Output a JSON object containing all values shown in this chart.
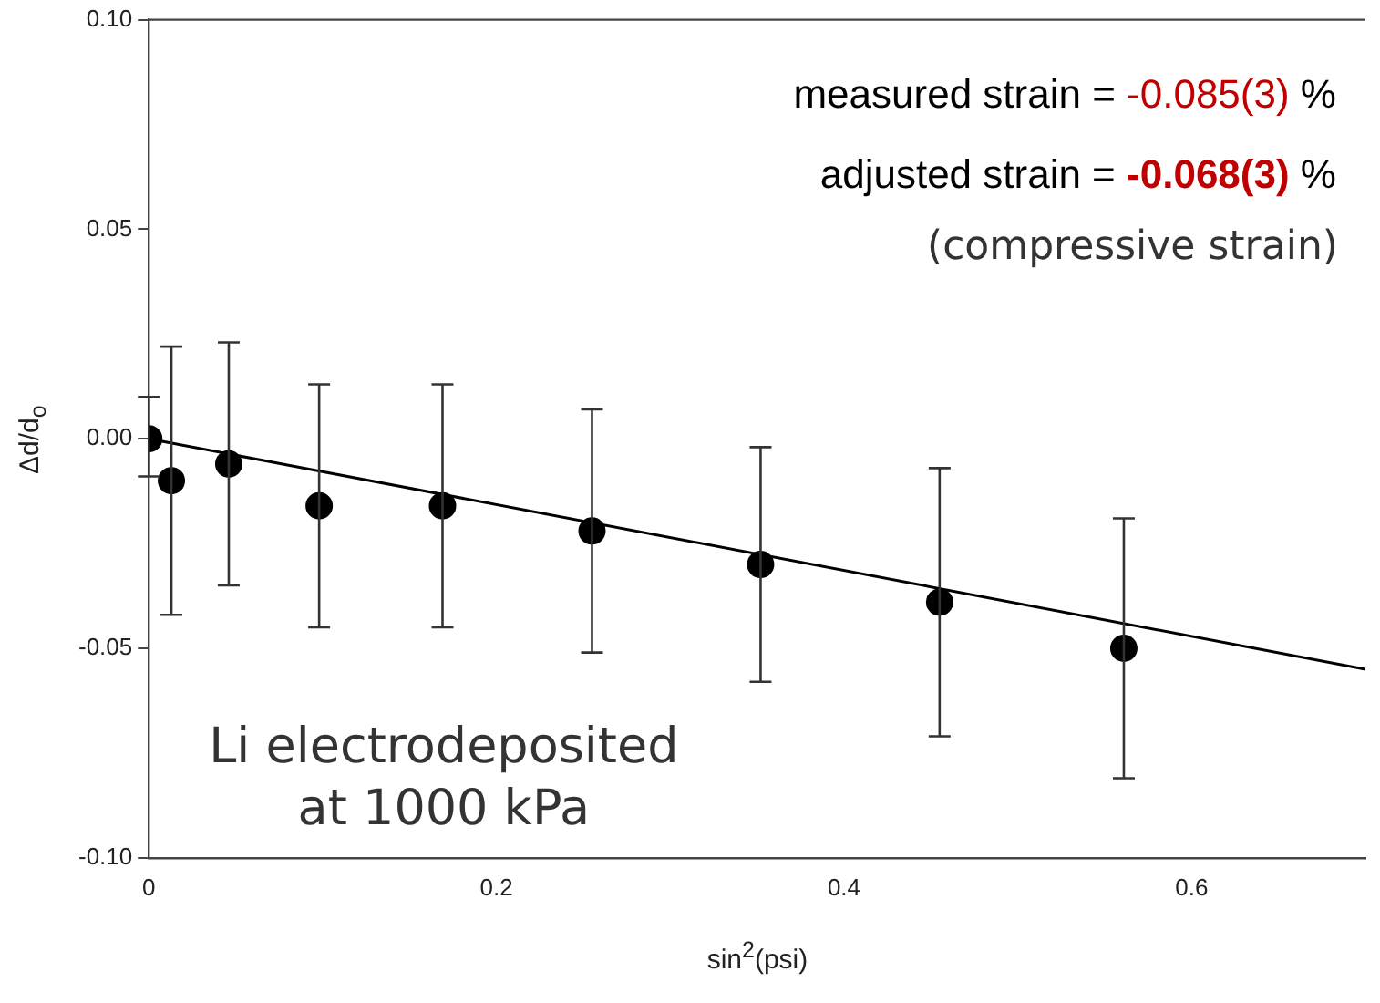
{
  "chart_data": {
    "type": "scatter",
    "xlabel": "sin$^{2}$(psi)",
    "ylabel": "Δd/d$_{o}$",
    "x": [
      0.0,
      0.013,
      0.046,
      0.098,
      0.169,
      0.255,
      0.352,
      0.455,
      0.561
    ],
    "series": [
      {
        "color": "#000000",
        "marker": "circle",
        "values": [
          0.0,
          -0.01,
          -0.006,
          -0.016,
          -0.016,
          -0.022,
          -0.03,
          -0.039,
          -0.05
        ],
        "errors": [
          [
            -0.009,
            0.01
          ],
          [
            -0.042,
            0.022
          ],
          [
            -0.035,
            0.023
          ],
          [
            -0.045,
            0.013
          ],
          [
            -0.045,
            0.013
          ],
          [
            -0.051,
            0.007
          ],
          [
            -0.058,
            -0.002
          ],
          [
            -0.071,
            -0.007
          ],
          [
            -0.081,
            -0.019
          ]
        ]
      },
      {
        "type": "line",
        "color": "#000000",
        "marker": "none",
        "x": [
          0.0,
          0.7
        ],
        "values": [
          0.0,
          -0.055
        ]
      }
    ],
    "xlim": [
      0,
      0.7
    ],
    "xticks": [
      0.0,
      0.2,
      0.4,
      0.6
    ],
    "ylim": [
      -0.1,
      0.1
    ],
    "yticks": [
      {
        "value": -0.1,
        "label": "-0.10"
      },
      {
        "value": -0.05,
        "label": "-0.05"
      },
      {
        "value": 0,
        "label": "0.00"
      },
      {
        "value": 0.05,
        "label": "0.05"
      },
      {
        "value": 0.1,
        "label": "0.10"
      }
    ],
    "grid": false,
    "legend": false,
    "annotations": [
      "measured strain = -0.085(3) %",
      "adjusted strain = -0.068(3) %",
      "(compressive strain)",
      "Li electrodeposited\nat 1000 kPa"
    ]
  }
}
